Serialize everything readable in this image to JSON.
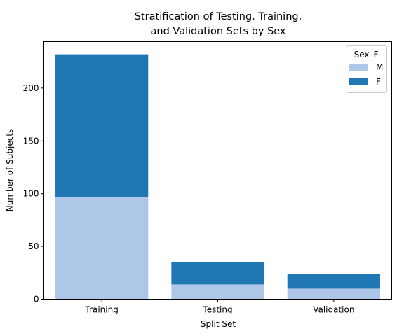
{
  "chart_data": {
    "type": "bar",
    "stacked": true,
    "title_lines": [
      "Stratification of Testing, Training,",
      "and Validation Sets by Sex"
    ],
    "xlabel": "Split Set",
    "ylabel": "Number of Subjects",
    "categories": [
      "Training",
      "Testing",
      "Validation"
    ],
    "series": [
      {
        "name": "M",
        "values": [
          97,
          14,
          10
        ],
        "color": "#aec7e8"
      },
      {
        "name": "F",
        "values": [
          135,
          21,
          14
        ],
        "color": "#1f77b4"
      }
    ],
    "ylim": [
      0,
      244
    ],
    "yticks": [
      0,
      50,
      100,
      150,
      200
    ],
    "legend": {
      "title": "Sex_F",
      "placement": "top-right"
    },
    "grid": false
  }
}
